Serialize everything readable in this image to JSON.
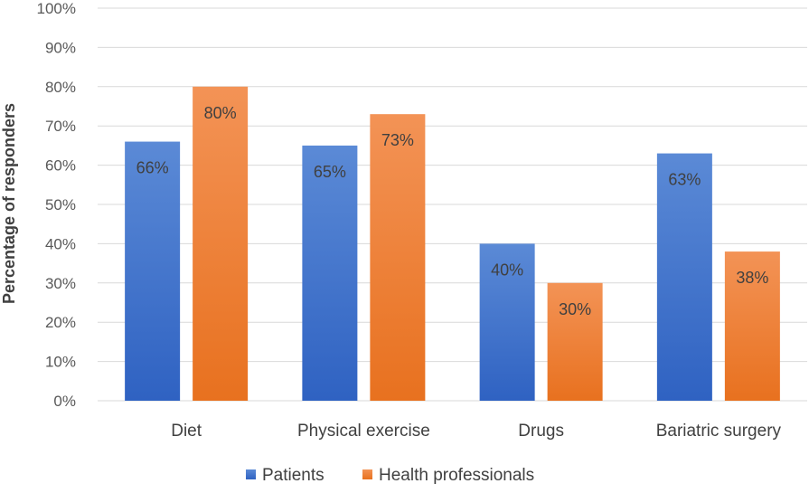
{
  "chart_data": {
    "type": "bar",
    "categories": [
      "Diet",
      "Physical exercise",
      "Drugs",
      "Bariatric surgery"
    ],
    "series": [
      {
        "name": "Patients",
        "values": [
          66,
          65,
          40,
          63
        ],
        "labels": [
          "66%",
          "65%",
          "40%",
          "63%"
        ]
      },
      {
        "name": "Health professionals",
        "values": [
          80,
          73,
          30,
          38
        ],
        "labels": [
          "80%",
          "73%",
          "30%",
          "38%"
        ]
      }
    ],
    "title": "",
    "xlabel": "",
    "ylabel": "Percentage of responders",
    "ylim": [
      0,
      100
    ],
    "yticks": [
      "0%",
      "10%",
      "20%",
      "30%",
      "40%",
      "50%",
      "60%",
      "70%",
      "80%",
      "90%",
      "100%"
    ],
    "grid": true,
    "legend_position": "bottom",
    "colors": {
      "Patients": {
        "top": "#5B8AD6",
        "bottom": "#2F62C2"
      },
      "Health professionals": {
        "top": "#F39356",
        "bottom": "#E8711F"
      },
      "grid": "#D9D9D9"
    }
  }
}
